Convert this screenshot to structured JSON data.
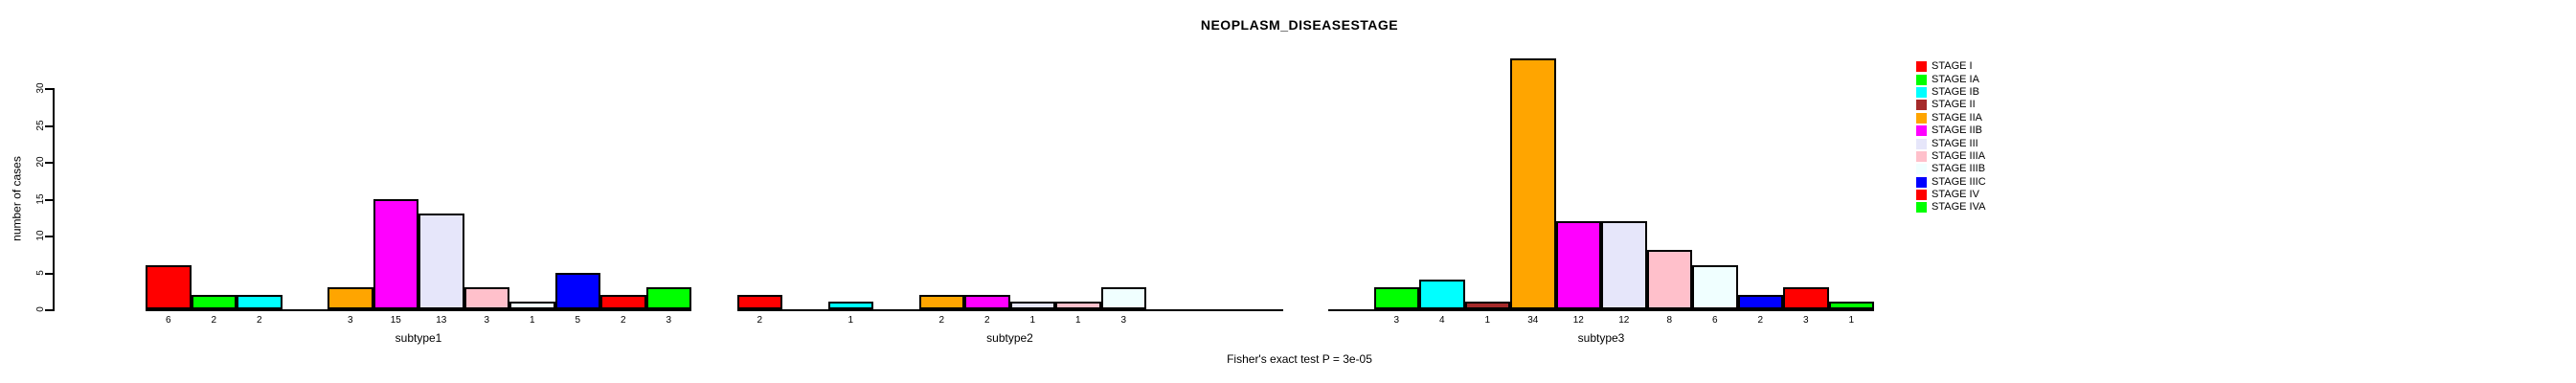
{
  "chart_data": {
    "type": "bar",
    "title": "NEOPLASM_DISEASESTAGE",
    "ylabel": "number of cases",
    "xlabel": "",
    "ylim": [
      0,
      30
    ],
    "yticks": [
      0,
      5,
      10,
      15,
      20,
      25,
      30
    ],
    "categories": [
      "subtype1",
      "subtype2",
      "subtype3"
    ],
    "series": [
      {
        "name": "STAGE I",
        "color": "#FF0000",
        "values": [
          6,
          2,
          0
        ]
      },
      {
        "name": "STAGE IA",
        "color": "#00FF00",
        "values": [
          2,
          0,
          3
        ]
      },
      {
        "name": "STAGE IB",
        "color": "#00FFFF",
        "values": [
          2,
          1,
          4
        ]
      },
      {
        "name": "STAGE II",
        "color": "#A52A2A",
        "values": [
          0,
          0,
          1
        ]
      },
      {
        "name": "STAGE IIA",
        "color": "#FFA500",
        "values": [
          3,
          2,
          34
        ]
      },
      {
        "name": "STAGE IIB",
        "color": "#FF00FF",
        "values": [
          15,
          2,
          12
        ]
      },
      {
        "name": "STAGE III",
        "color": "#E6E6FA",
        "values": [
          13,
          1,
          12
        ]
      },
      {
        "name": "STAGE IIIA",
        "color": "#FFC0CB",
        "values": [
          3,
          1,
          8
        ]
      },
      {
        "name": "STAGE IIIB",
        "color": "#F0FFFF",
        "values": [
          1,
          3,
          6
        ]
      },
      {
        "name": "STAGE IIIC",
        "color": "#0000FF",
        "values": [
          5,
          0,
          2
        ]
      },
      {
        "name": "STAGE IV",
        "color": "#FF0000",
        "values": [
          2,
          0,
          3
        ]
      },
      {
        "name": "STAGE IVA",
        "color": "#00FF00",
        "values": [
          3,
          0,
          1
        ]
      }
    ],
    "bar_value_labels": true,
    "legend_position": "right",
    "grid": false,
    "annotation": "Fisher's exact test P = 3e-05"
  }
}
